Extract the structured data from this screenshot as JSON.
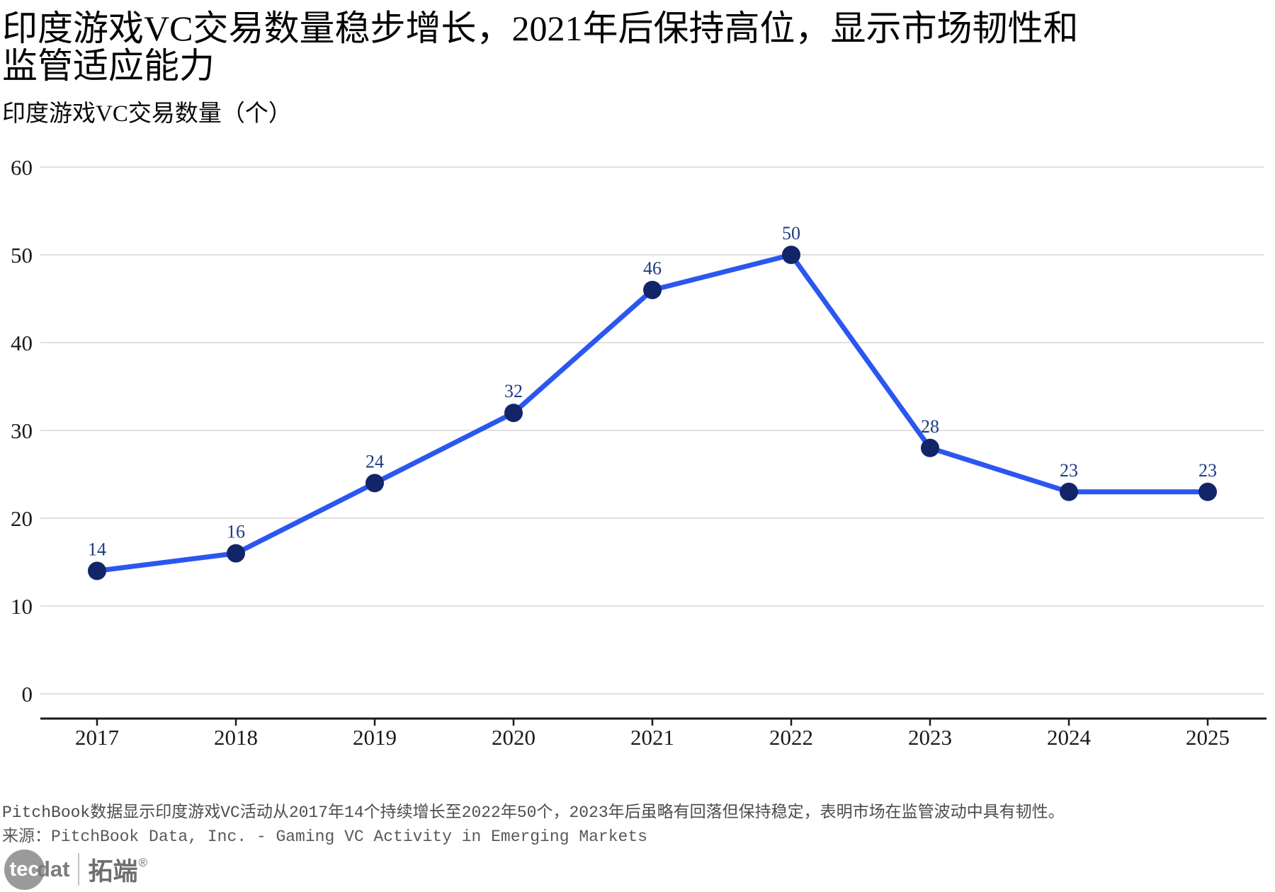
{
  "header": {
    "title": "印度游戏VC交易数量稳步增长，2021年后保持高位，显示市场韧性和监管适应能力",
    "subtitle": "印度游戏VC交易数量（个）"
  },
  "chart_data": {
    "type": "line",
    "title": "印度游戏VC交易数量（个）",
    "categories": [
      "2017",
      "2018",
      "2019",
      "2020",
      "2021",
      "2022",
      "2023",
      "2024",
      "2025"
    ],
    "series": [
      {
        "name": "印度游戏VC交易数量",
        "values": [
          14,
          16,
          24,
          32,
          46,
          50,
          28,
          23,
          23
        ]
      }
    ],
    "xlabel": "",
    "ylabel": "",
    "ylim": [
      0,
      60
    ],
    "yticks": [
      0,
      10,
      20,
      30,
      40,
      50,
      60
    ],
    "grid": true,
    "legend_position": "none",
    "colors": {
      "line": "#2b57f0",
      "point": "#132569",
      "point_label": "#1e3a85",
      "gridline": "#d5d5d5",
      "axis": "#1a1a1a",
      "tick_label": "#1a1a1a"
    }
  },
  "footer": {
    "note": "PitchBook数据显示印度游戏VC活动从2017年14个持续增长至2022年50个，2023年后虽略有回落但保持稳定，表明市场在监管波动中具有韧性。",
    "source": "来源：PitchBook Data, Inc. - Gaming VC Activity in Emerging Markets"
  },
  "logo": {
    "circle_text": "tec",
    "wordmark": "dat",
    "cjk": "拓端",
    "registered": "®"
  }
}
